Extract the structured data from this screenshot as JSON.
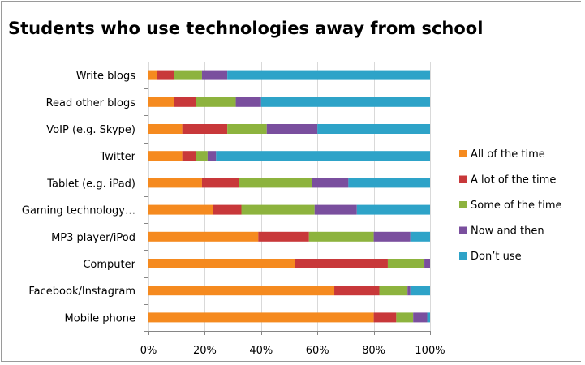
{
  "chart_data": {
    "type": "bar",
    "orientation": "horizontal",
    "stacked": "percent",
    "title": "Students who use technologies away from school",
    "categories": [
      "Write blogs",
      "Read other blogs",
      "VoIP (e.g. Skype)",
      "Twitter",
      "Tablet (e.g. iPad)",
      "Gaming technology…",
      "MP3 player/iPod",
      "Computer",
      "Facebook/Instagram",
      "Mobile phone"
    ],
    "series": [
      {
        "name": "All of the time",
        "color": "#F58A1F",
        "values": [
          3,
          9,
          12,
          12,
          19,
          23,
          39,
          52,
          66,
          80
        ]
      },
      {
        "name": "A lot of the time",
        "color": "#C8383A",
        "values": [
          6,
          8,
          16,
          5,
          13,
          10,
          18,
          33,
          16,
          8
        ]
      },
      {
        "name": "Some of the time",
        "color": "#8DB33E",
        "values": [
          10,
          14,
          14,
          4,
          26,
          26,
          23,
          13,
          10,
          6
        ]
      },
      {
        "name": "Now and then",
        "color": "#7A4F9E",
        "values": [
          9,
          9,
          18,
          3,
          13,
          15,
          13,
          2,
          1,
          5
        ]
      },
      {
        "name": "Don’t use",
        "color": "#2EA3C8",
        "values": [
          72,
          60,
          40,
          76,
          29,
          26,
          7,
          0,
          7,
          1
        ]
      }
    ],
    "x_ticks": [
      "0%",
      "20%",
      "40%",
      "60%",
      "80%",
      "100%"
    ],
    "xlim": [
      0,
      100
    ],
    "grid": true,
    "legend_position": "right"
  }
}
